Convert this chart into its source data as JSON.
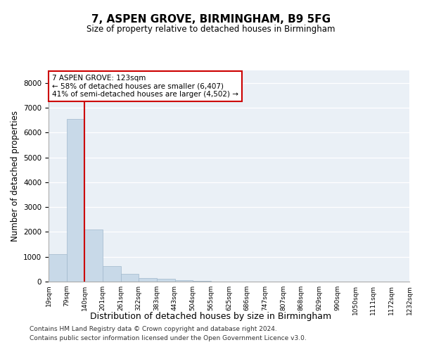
{
  "title": "7, ASPEN GROVE, BIRMINGHAM, B9 5FG",
  "subtitle": "Size of property relative to detached houses in Birmingham",
  "xlabel": "Distribution of detached houses by size in Birmingham",
  "ylabel": "Number of detached properties",
  "footnote1": "Contains HM Land Registry data © Crown copyright and database right 2024.",
  "footnote2": "Contains public sector information licensed under the Open Government Licence v3.0.",
  "annotation_line1": "7 ASPEN GROVE: 123sqm",
  "annotation_line2": "← 58% of detached houses are smaller (6,407)",
  "annotation_line3": "41% of semi-detached houses are larger (4,502) →",
  "bar_color": "#c8d9e8",
  "bar_edge_color": "#a0b8cc",
  "vline_color": "#cc0000",
  "ylim": [
    0,
    8500
  ],
  "yticks": [
    0,
    1000,
    2000,
    3000,
    4000,
    5000,
    6000,
    7000,
    8000
  ],
  "bin_labels": [
    "19sqm",
    "79sqm",
    "140sqm",
    "201sqm",
    "261sqm",
    "322sqm",
    "383sqm",
    "443sqm",
    "504sqm",
    "565sqm",
    "625sqm",
    "686sqm",
    "747sqm",
    "807sqm",
    "868sqm",
    "929sqm",
    "990sqm",
    "1050sqm",
    "1111sqm",
    "1172sqm",
    "1232sqm"
  ],
  "bar_heights": [
    1100,
    6550,
    2100,
    620,
    310,
    145,
    100,
    60,
    40,
    0,
    0,
    0,
    0,
    0,
    0,
    0,
    0,
    0,
    0,
    0
  ],
  "background_color": "#eaf0f6",
  "vline_bar_index": 1
}
